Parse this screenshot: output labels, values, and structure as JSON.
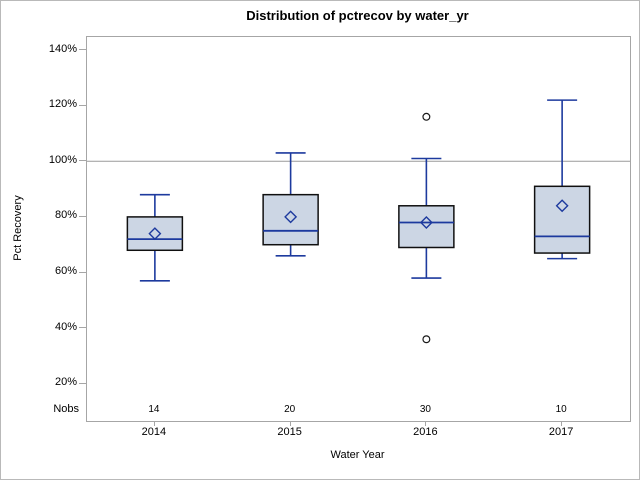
{
  "chart_data": {
    "type": "boxplot",
    "title": "Distribution of pctrecov by water_yr",
    "xlabel": "Water Year",
    "ylabel": "Pct Recovery",
    "categories": [
      "2014",
      "2015",
      "2016",
      "2017"
    ],
    "nobs_label": "Nobs",
    "nobs": [
      14,
      20,
      30,
      10
    ],
    "y_ticks": [
      140,
      120,
      100,
      80,
      60,
      40,
      20
    ],
    "y_tick_suffix": "%",
    "ylim": [
      6.6,
      144.7
    ],
    "reference_line": 100,
    "grid": "off",
    "legend": "none",
    "series": [
      {
        "category": "2014",
        "whisker_low": 57,
        "q1": 68,
        "median": 72,
        "mean": 74,
        "q3": 80,
        "whisker_high": 88,
        "outliers": []
      },
      {
        "category": "2015",
        "whisker_low": 66,
        "q1": 70,
        "median": 75,
        "mean": 80,
        "q3": 88,
        "whisker_high": 103,
        "outliers": []
      },
      {
        "category": "2016",
        "whisker_low": 58,
        "q1": 69,
        "median": 78,
        "mean": 78,
        "q3": 84,
        "whisker_high": 101,
        "outliers": [
          116,
          36
        ]
      },
      {
        "category": "2017",
        "whisker_low": 65,
        "q1": 67,
        "median": 73,
        "mean": 84,
        "q3": 91,
        "whisker_high": 122,
        "outliers": []
      }
    ],
    "colors": {
      "box_fill": "#ccd6e4",
      "box_border": "#101010",
      "accent_blue": "#1d3a9e",
      "frame": "#a6a6a6",
      "reference_line": "#9a9a9a",
      "outlier_stroke": "#1a1a1a",
      "text": "#000000",
      "background": "#ffffff"
    }
  }
}
